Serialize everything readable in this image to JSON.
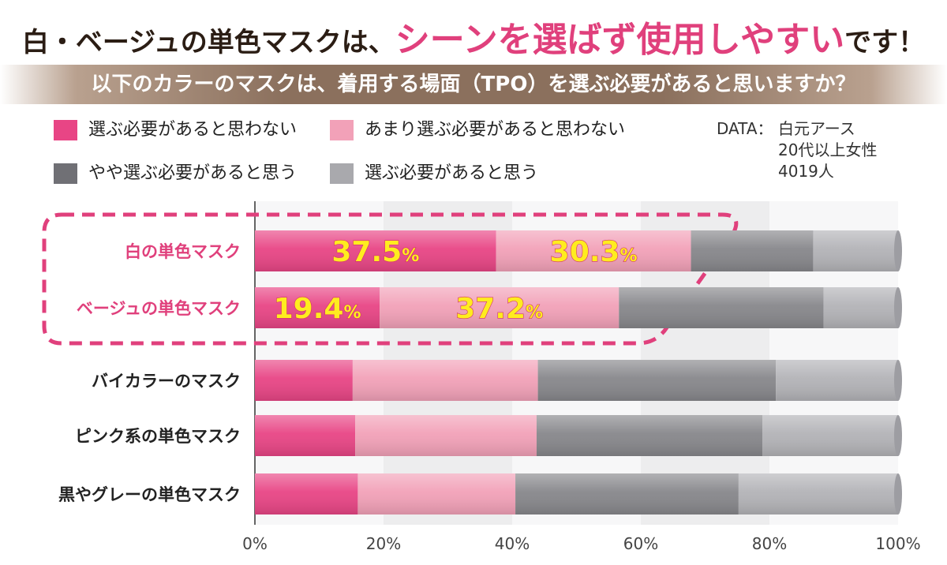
{
  "headline": {
    "prefix": "白・ベージュの単色マスクは、",
    "accent": "シーンを選ばず使用しやすい",
    "suffix": "です！"
  },
  "question": "以下のカラーのマスクは、着用する場面（TPO）を選ぶ必要があると思いますか？",
  "source": {
    "label": "DATA：",
    "lines": [
      "白元アース",
      "20代以上女性",
      "4019人"
    ]
  },
  "colors": {
    "accent": "#e0407c",
    "highlight_text": "#ffec1f",
    "band": "#8b705d"
  },
  "chart_data": {
    "type": "bar",
    "orientation": "horizontal",
    "stacked": true,
    "categories": [
      "白の単色マスク",
      "ベージュの単色マスク",
      "バイカラーのマスク",
      "ピンク系の単色マスク",
      "黒やグレーの単色マスク"
    ],
    "highlighted_categories": [
      "白の単色マスク",
      "ベージュの単色マスク"
    ],
    "series": [
      {
        "name": "選ぶ必要があると思わない",
        "color": "#e84585",
        "values": [
          37.5,
          19.4,
          15.2,
          15.6,
          16.0
        ]
      },
      {
        "name": "あまり選ぶ必要があると思わない",
        "color": "#f2a1b8",
        "values": [
          30.3,
          37.2,
          28.8,
          28.2,
          24.5
        ]
      },
      {
        "name": "やや選ぶ必要があると思う",
        "color": "#87878b",
        "values": [
          19.0,
          31.8,
          37.0,
          35.1,
          34.7
        ]
      },
      {
        "name": "選ぶ必要があると思う",
        "color": "#b3b3b7",
        "values": [
          13.2,
          11.6,
          19.0,
          21.1,
          24.8
        ]
      }
    ],
    "data_labels": [
      {
        "category": "白の単色マスク",
        "series": "選ぶ必要があると思わない",
        "number": "37.5",
        "unit": "%"
      },
      {
        "category": "白の単色マスク",
        "series": "あまり選ぶ必要があると思わない",
        "number": "30.3",
        "unit": "%"
      },
      {
        "category": "ベージュの単色マスク",
        "series": "選ぶ必要があると思わない",
        "number": "19.4",
        "unit": "%"
      },
      {
        "category": "ベージュの単色マスク",
        "series": "あまり選ぶ必要があると思わない",
        "number": "37.2",
        "unit": "%"
      }
    ],
    "x_ticks": [
      "0%",
      "20%",
      "40%",
      "60%",
      "80%",
      "100%"
    ],
    "xlim": [
      0,
      100
    ],
    "grid": "alternating vertical bands every 20%"
  }
}
